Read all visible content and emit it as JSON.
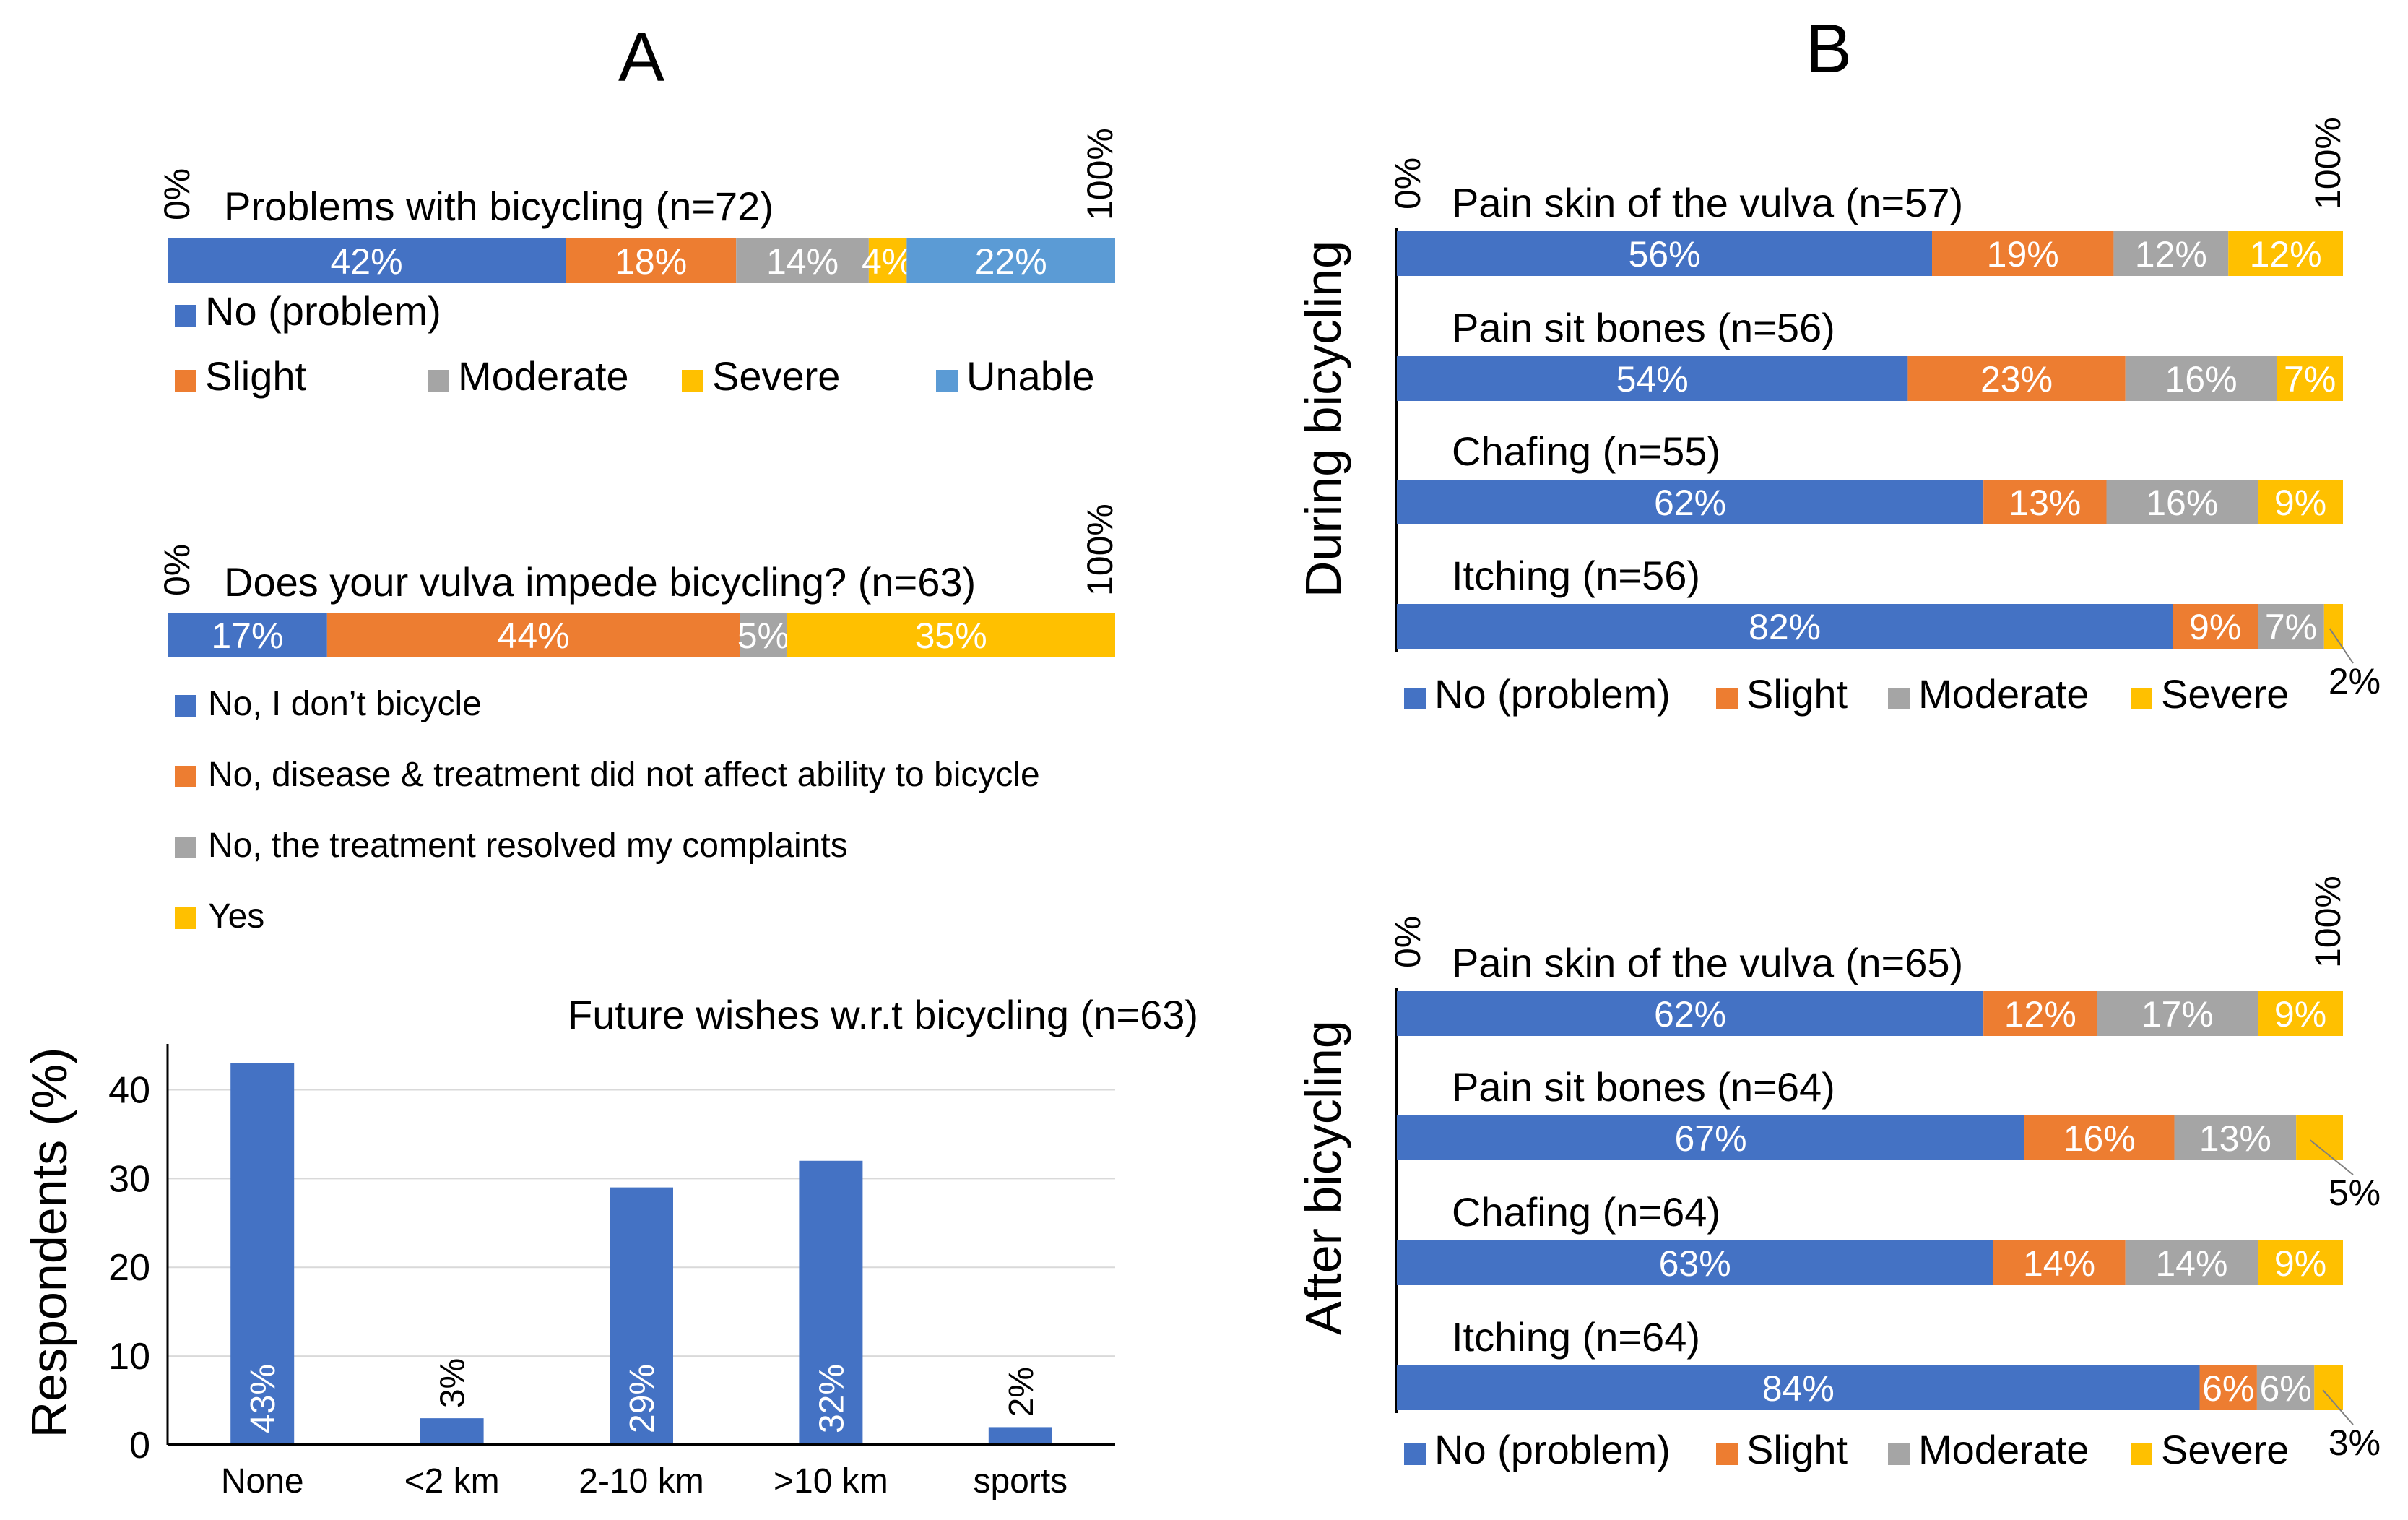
{
  "panels": {
    "A": "A",
    "B": "B"
  },
  "colors": {
    "no_problem": "#4472C4",
    "slight": "#ED7D31",
    "moderate": "#A5A5A5",
    "severe": "#FFC000",
    "unable": "#5B9BD5"
  },
  "chart_data": [
    {
      "type": "bar",
      "orientation": "horizontal-stacked-100",
      "panel": "A",
      "title": "Problems with bicycling (n=72)",
      "axis_min_label": "0%",
      "axis_max_label": "100%",
      "series": [
        {
          "name": "No (problem)",
          "value": 42,
          "label": "42%"
        },
        {
          "name": "Slight",
          "value": 18,
          "label": "18%"
        },
        {
          "name": "Moderate",
          "value": 14,
          "label": "14%"
        },
        {
          "name": "Severe",
          "value": 4,
          "label": "4%"
        },
        {
          "name": "Unable",
          "value": 22,
          "label": "22%"
        }
      ]
    },
    {
      "type": "bar",
      "orientation": "horizontal-stacked-100",
      "panel": "A",
      "title": "Does your vulva impede bicycling? (n=63)",
      "axis_min_label": "0%",
      "axis_max_label": "100%",
      "series": [
        {
          "name": "No, I don’t bicycle",
          "value": 17,
          "label": "17%"
        },
        {
          "name": "No, disease & treatment did not affect ability to bicycle",
          "value": 44,
          "label": "44%"
        },
        {
          "name": "No, the treatment resolved my complaints",
          "value": 5,
          "label": "5%"
        },
        {
          "name": "Yes",
          "value": 35,
          "label": "35%"
        }
      ]
    },
    {
      "type": "bar",
      "panel": "A",
      "title": "Future wishes w.r.t bicycling (n=63)",
      "ylabel": "Respondents (%)",
      "ylim": [
        0,
        45
      ],
      "yticks": [
        "0",
        "10",
        "20",
        "30",
        "40"
      ],
      "categories": [
        "None",
        "<2 km",
        "2-10 km",
        ">10 km",
        "sports"
      ],
      "values": [
        43,
        3,
        29,
        32,
        2
      ],
      "labels": [
        "43%",
        "3%",
        "29%",
        "32%",
        "2%"
      ],
      "grid": true
    },
    {
      "type": "bar",
      "orientation": "horizontal-stacked-100",
      "panel": "B",
      "group_label": "During bicycling",
      "axis_min_label": "0%",
      "axis_max_label": "100%",
      "legend": [
        "No (problem)",
        "Slight",
        "Moderate",
        "Severe"
      ],
      "rows": [
        {
          "title": "Pain skin of the vulva (n=57)",
          "values": [
            56,
            19,
            12,
            12
          ],
          "labels": [
            "56%",
            "19%",
            "12%",
            "12%"
          ]
        },
        {
          "title": "Pain sit bones (n=56)",
          "values": [
            54,
            23,
            16,
            7
          ],
          "labels": [
            "54%",
            "23%",
            "16%",
            "7%"
          ]
        },
        {
          "title": "Chafing (n=55)",
          "values": [
            62,
            13,
            16,
            9
          ],
          "labels": [
            "62%",
            "13%",
            "16%",
            "9%"
          ]
        },
        {
          "title": "Itching (n=56)",
          "values": [
            82,
            9,
            7,
            2
          ],
          "labels": [
            "82%",
            "9%",
            "7%",
            "2%"
          ]
        }
      ]
    },
    {
      "type": "bar",
      "orientation": "horizontal-stacked-100",
      "panel": "B",
      "group_label": "After bicycling",
      "axis_min_label": "0%",
      "axis_max_label": "100%",
      "legend": [
        "No (problem)",
        "Slight",
        "Moderate",
        "Severe"
      ],
      "rows": [
        {
          "title": "Pain skin of the vulva (n=65)",
          "values": [
            62,
            12,
            17,
            9
          ],
          "labels": [
            "62%",
            "12%",
            "17%",
            "9%"
          ]
        },
        {
          "title": "Pain sit bones (n=64)",
          "values": [
            67,
            16,
            13,
            5
          ],
          "labels": [
            "67%",
            "16%",
            "13%",
            "5%"
          ]
        },
        {
          "title": "Chafing (n=64)",
          "values": [
            63,
            14,
            14,
            9
          ],
          "labels": [
            "63%",
            "14%",
            "14%",
            "9%"
          ]
        },
        {
          "title": "Itching (n=64)",
          "values": [
            84,
            6,
            6,
            3
          ],
          "labels": [
            "84%",
            "6%",
            "6%",
            "3%"
          ]
        }
      ]
    }
  ]
}
